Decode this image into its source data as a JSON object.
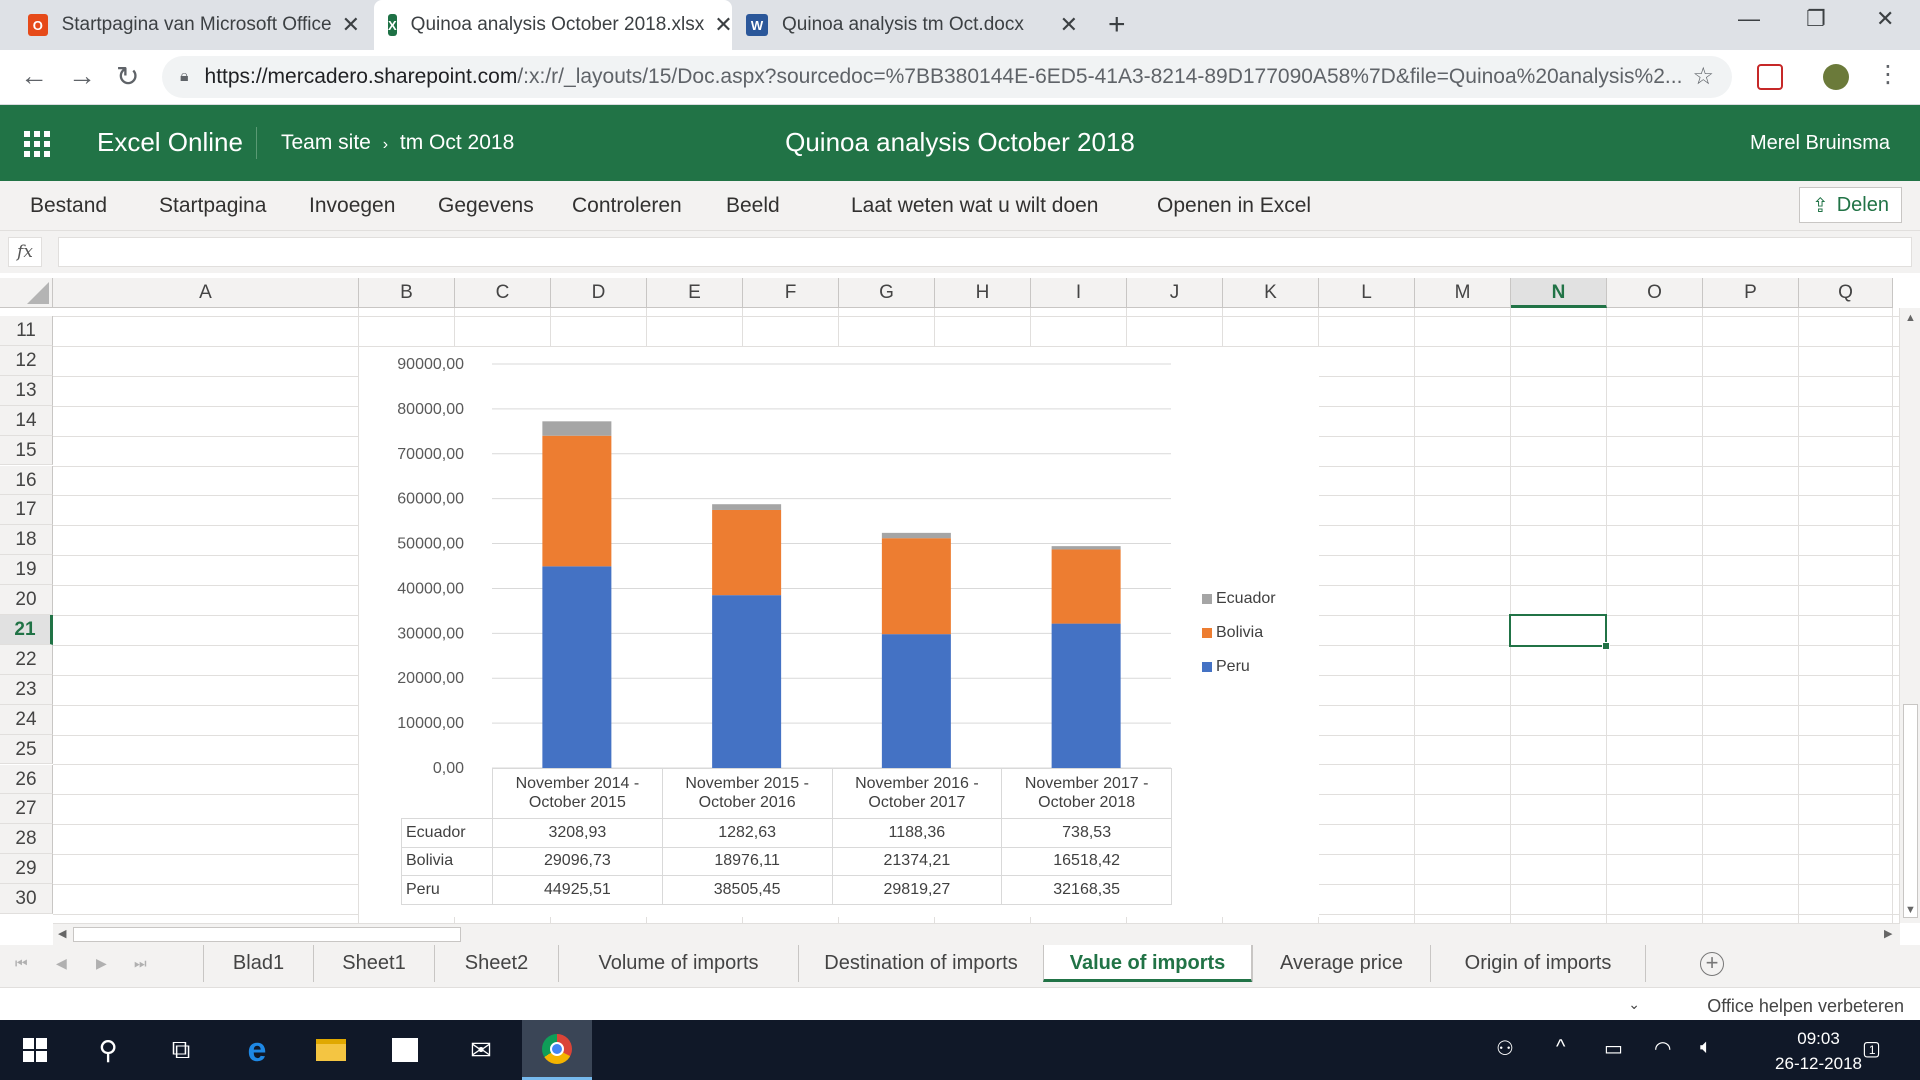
{
  "browser": {
    "tabs": [
      {
        "title": "Startpagina van Microsoft Office",
        "icon": "office-icon",
        "active": false
      },
      {
        "title": "Quinoa analysis October 2018.xlsx",
        "icon": "excel-icon",
        "active": true
      },
      {
        "title": "Quinoa analysis tm Oct.docx",
        "icon": "word-icon",
        "active": false
      }
    ],
    "url_host": "https://mercadero.sharepoint.com",
    "url_path": "/:x:/r/_layouts/15/Doc.aspx?sourcedoc=%7BB380144E-6ED5-41A3-8214-89D177090A58%7D&file=Quinoa%20analysis%2..."
  },
  "excel": {
    "app_name": "Excel Online",
    "breadcrumb": [
      "Team site",
      "tm Oct 2018"
    ],
    "doc_title": "Quinoa analysis October 2018",
    "user_name": "Merel Bruinsma",
    "menu": [
      "Bestand",
      "Startpagina",
      "Invoegen",
      "Gegevens",
      "Controleren",
      "Beeld",
      "Laat weten wat u wilt doen",
      "Openen in Excel"
    ],
    "share_label": "Delen",
    "fx_label": "fx",
    "columns": [
      "A",
      "B",
      "C",
      "D",
      "E",
      "F",
      "G",
      "H",
      "I",
      "J",
      "K",
      "L",
      "M",
      "N",
      "O",
      "P",
      "Q"
    ],
    "selected_column": "N",
    "rows": [
      "11",
      "12",
      "13",
      "14",
      "15",
      "16",
      "17",
      "18",
      "19",
      "20",
      "21",
      "22",
      "23",
      "24",
      "25",
      "26",
      "27",
      "28",
      "29",
      "30"
    ],
    "selected_row": "21",
    "sheets": [
      "Blad1",
      "Sheet1",
      "Sheet2",
      "Volume of imports",
      "Destination of imports",
      "Value of imports",
      "Average price",
      "Origin of imports"
    ],
    "active_sheet": "Value of imports",
    "feedback": "Office helpen verbeteren"
  },
  "chart_data": {
    "type": "bar",
    "stacked": true,
    "categories": [
      "November 2014 - October 2015",
      "November 2015 - October 2016",
      "November 2016 - October 2017",
      "November 2017 - October 2018"
    ],
    "category_lines": [
      [
        "November 2014 -",
        "October 2015"
      ],
      [
        "November 2015 -",
        "October 2016"
      ],
      [
        "November 2016 -",
        "October 2017"
      ],
      [
        "November 2017 -",
        "October 2018"
      ]
    ],
    "series": [
      {
        "name": "Peru",
        "color": "#4472c4",
        "values": [
          44925.51,
          38505.45,
          29819.27,
          32168.35
        ],
        "labels": [
          "44925,51",
          "38505,45",
          "29819,27",
          "32168,35"
        ]
      },
      {
        "name": "Bolivia",
        "color": "#ed7d31",
        "values": [
          29096.73,
          18976.11,
          21374.21,
          16518.42
        ],
        "labels": [
          "29096,73",
          "18976,11",
          "21374,21",
          "16518,42"
        ]
      },
      {
        "name": "Ecuador",
        "color": "#a5a5a5",
        "values": [
          3208.93,
          1282.63,
          1188.36,
          738.53
        ],
        "labels": [
          "3208,93",
          "1282,63",
          "1188,36",
          "738,53"
        ]
      }
    ],
    "ylim": [
      0,
      90000
    ],
    "yticks": [
      "0,00",
      "10000,00",
      "20000,00",
      "30000,00",
      "40000,00",
      "50000,00",
      "60000,00",
      "70000,00",
      "80000,00",
      "90000,00"
    ],
    "grid": true,
    "legend": "right",
    "data_table": true,
    "title": "",
    "xlabel": "",
    "ylabel": ""
  },
  "taskbar": {
    "time": "09:03",
    "date": "26-12-2018",
    "notifications": "1"
  }
}
